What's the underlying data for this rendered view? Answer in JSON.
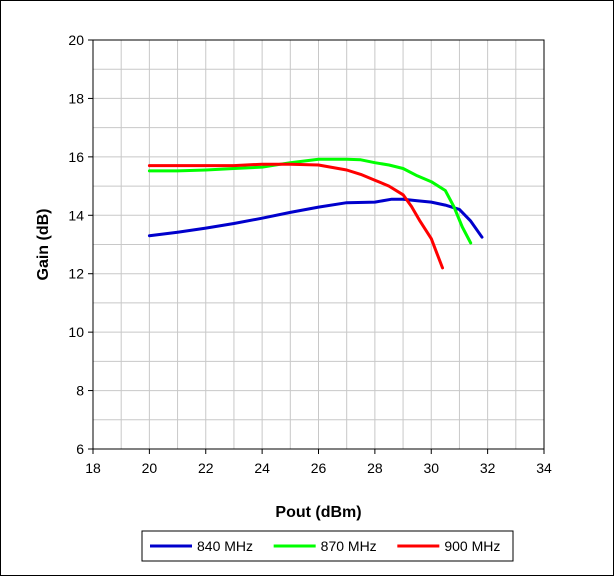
{
  "chart_data": {
    "type": "line",
    "title": "",
    "xlabel": "Pout (dBm)",
    "ylabel": "Gain (dB)",
    "xlim": [
      18,
      34
    ],
    "ylim": [
      6,
      20
    ],
    "xticks": [
      18,
      20,
      22,
      24,
      26,
      28,
      30,
      32,
      34
    ],
    "yticks": [
      6,
      8,
      10,
      12,
      14,
      16,
      18,
      20
    ],
    "grid": true,
    "legend_position": "bottom",
    "series": [
      {
        "name": "840 MHz",
        "color": "#0000CC",
        "points": [
          [
            20,
            13.3
          ],
          [
            21,
            13.42
          ],
          [
            22,
            13.56
          ],
          [
            23,
            13.72
          ],
          [
            24,
            13.9
          ],
          [
            25,
            14.1
          ],
          [
            26,
            14.28
          ],
          [
            27,
            14.43
          ],
          [
            28,
            14.45
          ],
          [
            28.6,
            14.55
          ],
          [
            29,
            14.55
          ],
          [
            29.5,
            14.5
          ],
          [
            30,
            14.45
          ],
          [
            30.5,
            14.35
          ],
          [
            31,
            14.2
          ],
          [
            31.4,
            13.8
          ],
          [
            31.8,
            13.25
          ]
        ]
      },
      {
        "name": "870 MHz",
        "color": "#00FF00",
        "points": [
          [
            20,
            15.52
          ],
          [
            21,
            15.52
          ],
          [
            22,
            15.55
          ],
          [
            23,
            15.6
          ],
          [
            24,
            15.65
          ],
          [
            25,
            15.8
          ],
          [
            26,
            15.92
          ],
          [
            27,
            15.92
          ],
          [
            27.5,
            15.9
          ],
          [
            28,
            15.8
          ],
          [
            28.5,
            15.72
          ],
          [
            29,
            15.6
          ],
          [
            29.5,
            15.35
          ],
          [
            30,
            15.15
          ],
          [
            30.5,
            14.85
          ],
          [
            30.8,
            14.3
          ],
          [
            31.1,
            13.6
          ],
          [
            31.4,
            13.05
          ]
        ]
      },
      {
        "name": "900 MHz",
        "color": "#FF0000",
        "points": [
          [
            20,
            15.7
          ],
          [
            21,
            15.7
          ],
          [
            22,
            15.7
          ],
          [
            23,
            15.7
          ],
          [
            24,
            15.75
          ],
          [
            25,
            15.75
          ],
          [
            26,
            15.72
          ],
          [
            27,
            15.55
          ],
          [
            27.5,
            15.4
          ],
          [
            28,
            15.2
          ],
          [
            28.5,
            15.0
          ],
          [
            29,
            14.7
          ],
          [
            29.3,
            14.3
          ],
          [
            29.6,
            13.8
          ],
          [
            30,
            13.2
          ],
          [
            30.2,
            12.7
          ],
          [
            30.4,
            12.2
          ]
        ]
      }
    ]
  }
}
